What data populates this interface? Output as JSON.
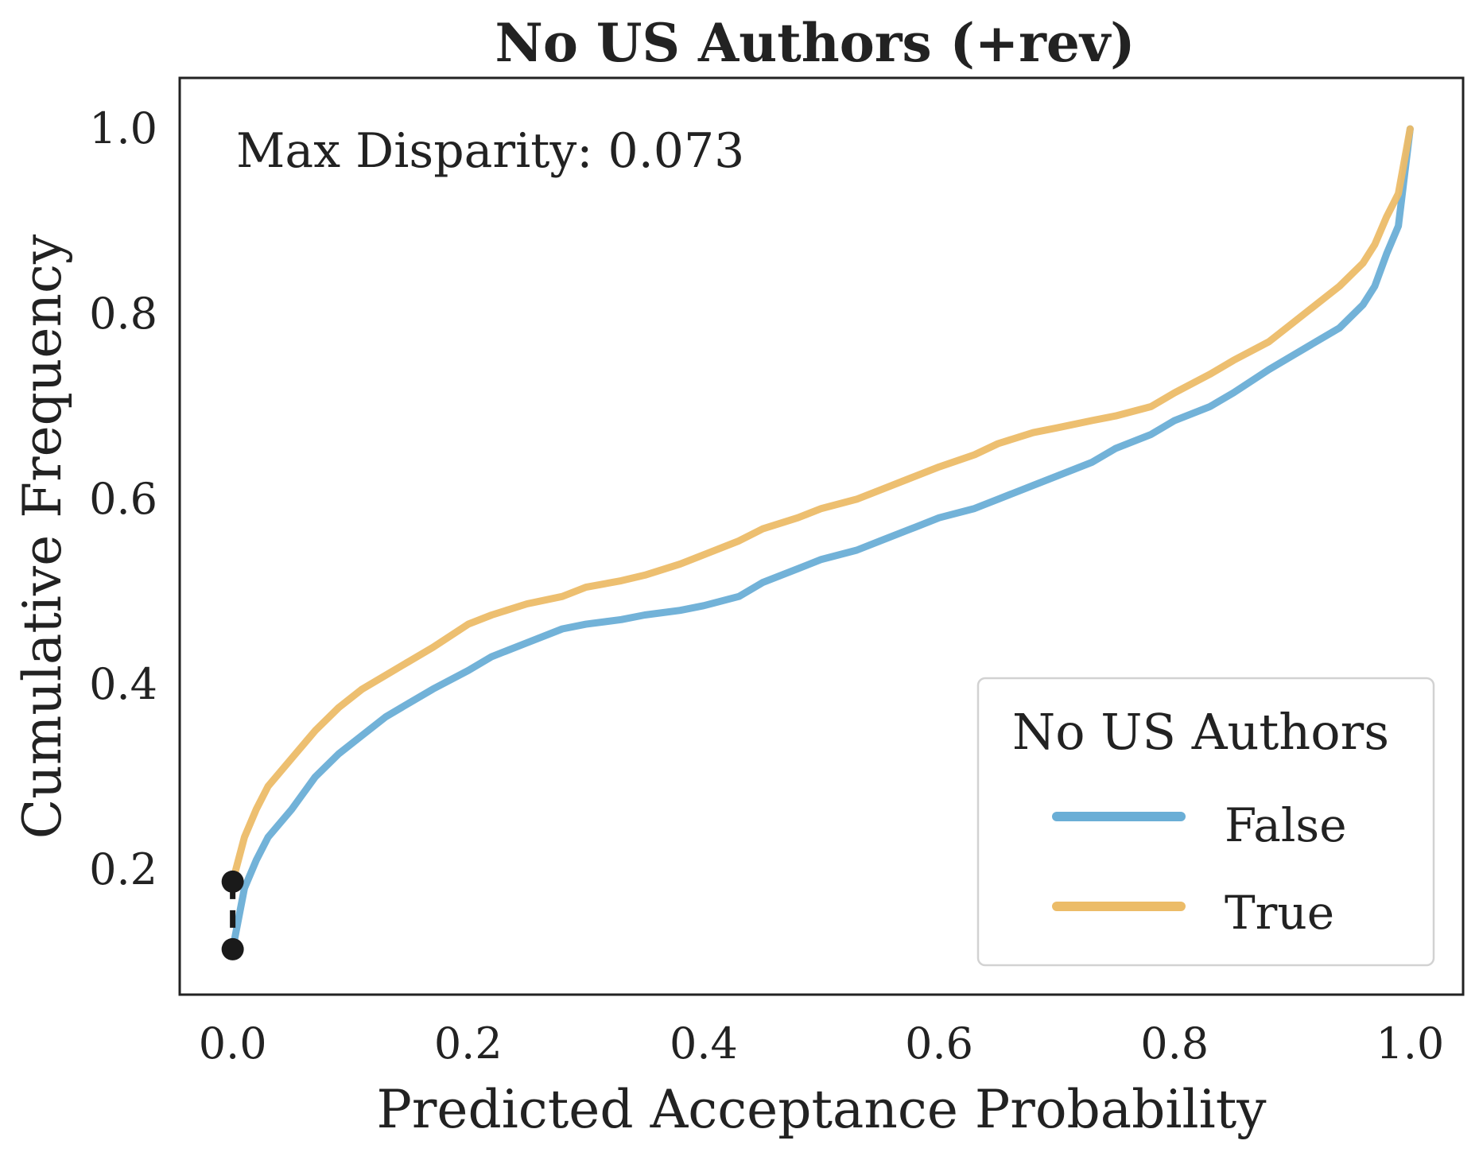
{
  "chart_data": {
    "type": "line",
    "title": "No US Authors (+rev)",
    "xlabel": "Predicted Acceptance Probability",
    "ylabel": "Cumulative Frequency",
    "xlim": [
      -0.045,
      1.045
    ],
    "ylim": [
      0.065,
      1.055
    ],
    "xticks": [
      0.0,
      0.2,
      0.4,
      0.6,
      0.8,
      1.0
    ],
    "xtick_labels": [
      "0.0",
      "0.2",
      "0.4",
      "0.6",
      "0.8",
      "1.0"
    ],
    "yticks": [
      0.2,
      0.4,
      0.6,
      0.8,
      1.0
    ],
    "ytick_labels": [
      "0.2",
      "0.4",
      "0.6",
      "0.8",
      "1.0"
    ],
    "annotation": "Max Disparity: 0.073",
    "disparity": {
      "x": 0.0,
      "y_low": 0.114,
      "y_high": 0.187
    },
    "legend": {
      "title": "No US Authors",
      "placement": "lower-right"
    },
    "series": [
      {
        "name": "False",
        "color": "#6aaed6",
        "x": [
          0.0,
          0.01,
          0.02,
          0.03,
          0.05,
          0.07,
          0.09,
          0.11,
          0.13,
          0.15,
          0.17,
          0.2,
          0.22,
          0.25,
          0.28,
          0.3,
          0.33,
          0.35,
          0.38,
          0.4,
          0.43,
          0.45,
          0.48,
          0.5,
          0.53,
          0.55,
          0.58,
          0.6,
          0.63,
          0.65,
          0.68,
          0.7,
          0.73,
          0.75,
          0.78,
          0.8,
          0.83,
          0.85,
          0.88,
          0.9,
          0.92,
          0.94,
          0.96,
          0.97,
          0.98,
          0.99,
          1.0
        ],
        "y": [
          0.114,
          0.18,
          0.21,
          0.235,
          0.265,
          0.3,
          0.325,
          0.345,
          0.365,
          0.38,
          0.395,
          0.415,
          0.43,
          0.445,
          0.46,
          0.465,
          0.47,
          0.475,
          0.48,
          0.485,
          0.495,
          0.51,
          0.525,
          0.535,
          0.545,
          0.555,
          0.57,
          0.58,
          0.59,
          0.6,
          0.615,
          0.625,
          0.64,
          0.655,
          0.67,
          0.685,
          0.7,
          0.715,
          0.74,
          0.755,
          0.77,
          0.785,
          0.81,
          0.83,
          0.865,
          0.895,
          1.0
        ]
      },
      {
        "name": "True",
        "color": "#ecbc68",
        "x": [
          0.0,
          0.01,
          0.02,
          0.03,
          0.05,
          0.07,
          0.09,
          0.11,
          0.13,
          0.15,
          0.17,
          0.2,
          0.22,
          0.25,
          0.28,
          0.3,
          0.33,
          0.35,
          0.38,
          0.4,
          0.43,
          0.45,
          0.48,
          0.5,
          0.53,
          0.55,
          0.58,
          0.6,
          0.63,
          0.65,
          0.68,
          0.7,
          0.73,
          0.75,
          0.78,
          0.8,
          0.83,
          0.85,
          0.88,
          0.9,
          0.92,
          0.94,
          0.96,
          0.97,
          0.98,
          0.99,
          1.0
        ],
        "y": [
          0.187,
          0.235,
          0.265,
          0.29,
          0.32,
          0.35,
          0.375,
          0.395,
          0.41,
          0.425,
          0.44,
          0.465,
          0.475,
          0.487,
          0.495,
          0.505,
          0.512,
          0.518,
          0.53,
          0.54,
          0.555,
          0.568,
          0.58,
          0.59,
          0.6,
          0.61,
          0.625,
          0.635,
          0.648,
          0.66,
          0.672,
          0.677,
          0.685,
          0.69,
          0.7,
          0.715,
          0.735,
          0.75,
          0.77,
          0.79,
          0.81,
          0.83,
          0.855,
          0.875,
          0.905,
          0.93,
          1.0
        ]
      }
    ]
  }
}
